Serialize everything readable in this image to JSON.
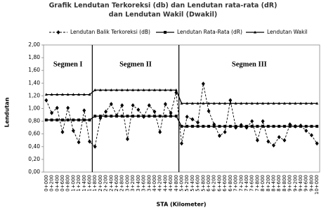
{
  "chart_data": {
    "type": "line",
    "title": "Grafik Lendutan Terkoreksi (db) dan Lendutan rata-rata (dR)",
    "subtitle": "dan Lendutan Wakil (Dwakil)",
    "y_label": "Lendutan",
    "x_label": "STA (Kilometer)",
    "annotations": [
      "Segmen I",
      "Segmen II",
      "Segmen III"
    ],
    "categories": [
      "0+000",
      "0+200",
      "0+400",
      "0+600",
      "0+800",
      "1+000",
      "1+200",
      "1+400",
      "1+600",
      "1+800",
      "2+000",
      "2+200",
      "2+400",
      "2+600",
      "2+800",
      "3+000",
      "3+200",
      "3+400",
      "3+600",
      "3+800",
      "4+000",
      "4+200",
      "4+400",
      "4+600",
      "4+800",
      "5+000",
      "5+200",
      "5+400",
      "5+600",
      "5+800",
      "6+000",
      "6+200",
      "6+400",
      "6+600",
      "6+800",
      "7+000",
      "7+200",
      "7+400",
      "7+600",
      "7+800",
      "8+000",
      "8+200",
      "8+400",
      "8+600",
      "8+800",
      "9+000",
      "9+200",
      "9+400",
      "9+600",
      "9+800",
      "10+000"
    ],
    "series": [
      {
        "name": "Lendutan Balik Terkoreksi (dB)",
        "color": "#000000",
        "marker": "diamond",
        "dash": true,
        "values": [
          1.13,
          0.93,
          1.01,
          0.63,
          1.01,
          0.65,
          0.47,
          0.97,
          0.48,
          0.4,
          0.85,
          0.95,
          1.07,
          0.89,
          1.05,
          0.52,
          1.05,
          0.98,
          0.87,
          1.05,
          0.95,
          0.63,
          1.07,
          0.93,
          1.25,
          0.45,
          0.87,
          0.83,
          0.78,
          1.39,
          0.96,
          0.75,
          0.57,
          0.63,
          1.13,
          0.7,
          0.74,
          0.7,
          0.8,
          0.5,
          0.8,
          0.48,
          0.42,
          0.55,
          0.5,
          0.75,
          0.72,
          0.73,
          0.65,
          0.58,
          0.45
        ]
      },
      {
        "name": "Lendutan Rata-Rata  (dR)",
        "color": "#000000",
        "marker": "square",
        "dash": false,
        "values": [
          0.82,
          0.82,
          0.82,
          0.82,
          0.82,
          0.82,
          0.82,
          0.82,
          0.82,
          0.88,
          0.88,
          0.88,
          0.88,
          0.88,
          0.88,
          0.88,
          0.88,
          0.88,
          0.88,
          0.88,
          0.88,
          0.88,
          0.88,
          0.88,
          0.88,
          0.72,
          0.72,
          0.72,
          0.72,
          0.72,
          0.72,
          0.72,
          0.72,
          0.72,
          0.72,
          0.72,
          0.72,
          0.72,
          0.72,
          0.72,
          0.72,
          0.72,
          0.72,
          0.72,
          0.72,
          0.72,
          0.72,
          0.72,
          0.72,
          0.72,
          0.72
        ]
      },
      {
        "name": "Lendutan Wakil",
        "color": "#000000",
        "marker": "triangle",
        "dash": false,
        "values": [
          1.22,
          1.22,
          1.22,
          1.22,
          1.22,
          1.22,
          1.22,
          1.22,
          1.22,
          1.29,
          1.29,
          1.29,
          1.29,
          1.29,
          1.29,
          1.29,
          1.29,
          1.29,
          1.29,
          1.29,
          1.29,
          1.29,
          1.29,
          1.29,
          1.29,
          1.08,
          1.08,
          1.08,
          1.08,
          1.08,
          1.08,
          1.08,
          1.08,
          1.08,
          1.08,
          1.08,
          1.08,
          1.08,
          1.08,
          1.08,
          1.08,
          1.08,
          1.08,
          1.08,
          1.08,
          1.08,
          1.08,
          1.08,
          1.08,
          1.08,
          1.08
        ]
      }
    ],
    "ylim": [
      0,
      2
    ],
    "yticks": [
      {
        "value": 0,
        "label": "0,00"
      },
      {
        "value": 0.2,
        "label": "0,20"
      },
      {
        "value": 0.4,
        "label": "0,40"
      },
      {
        "value": 0.6,
        "label": "0,60"
      },
      {
        "value": 0.8,
        "label": "0,80"
      },
      {
        "value": 1,
        "label": "1,00"
      },
      {
        "value": 1.2,
        "label": "1,20"
      },
      {
        "value": 1.4,
        "label": "1,40"
      },
      {
        "value": 1.6,
        "label": "1,60"
      },
      {
        "value": 1.8,
        "label": "1,80"
      },
      {
        "value": 2,
        "label": "2,00"
      }
    ],
    "grid": false
  }
}
